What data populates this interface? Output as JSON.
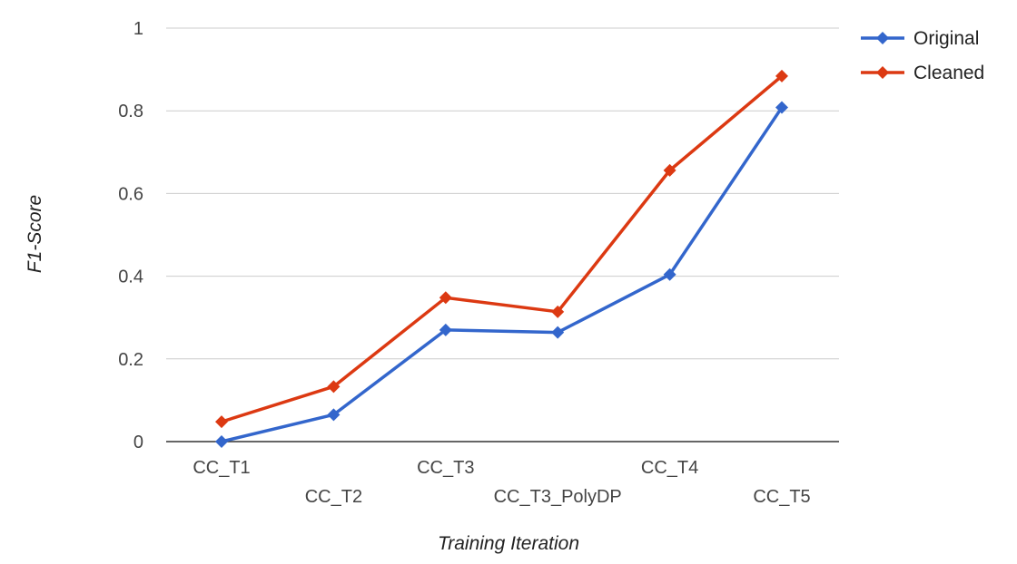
{
  "chart_data": {
    "type": "line",
    "title": "",
    "xlabel": "Training Iteration",
    "ylabel": "F1-Score",
    "categories": [
      "CC_T1",
      "CC_T2",
      "CC_T3",
      "CC_T3_PolyDP",
      "CC_T4",
      "CC_T5"
    ],
    "ylim": [
      0,
      1
    ],
    "yticks": [
      "0",
      "0.2",
      "0.4",
      "0.6",
      "0.8",
      "1"
    ],
    "grid": true,
    "legend_position": "top-right",
    "series": [
      {
        "name": "Original",
        "color": "#3366cc",
        "values": [
          0.0,
          0.065,
          0.27,
          0.264,
          0.404,
          0.808
        ]
      },
      {
        "name": "Cleaned",
        "color": "#dc3912",
        "values": [
          0.048,
          0.133,
          0.348,
          0.314,
          0.656,
          0.884
        ]
      }
    ]
  }
}
